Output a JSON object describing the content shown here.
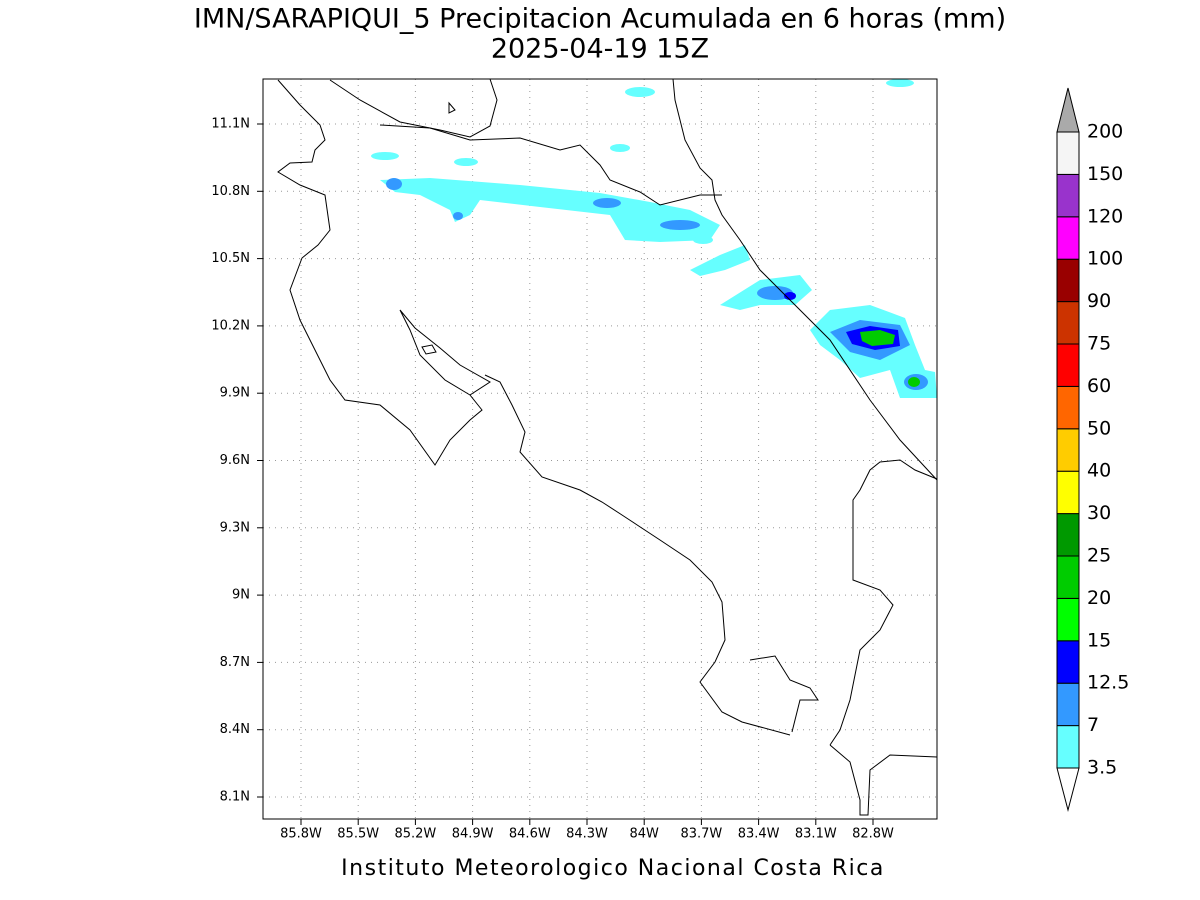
{
  "title": "IMN/SARAPIQUI_5 Precipitacion Acumulada en 6 horas (mm)",
  "subtitle": "2025-04-19 15Z",
  "map": {
    "lon_labels": [
      "85.8W",
      "85.5W",
      "85.2W",
      "84.9W",
      "84.6W",
      "84.3W",
      "84W",
      "83.7W",
      "83.4W",
      "83.1W",
      "82.8W"
    ],
    "lat_labels": [
      "11.1N",
      "10.8N",
      "10.5N",
      "10.2N",
      "9.9N",
      "9.6N",
      "9.3N",
      "9N",
      "8.7N",
      "8.4N",
      "8.1N"
    ]
  },
  "legend": {
    "levels": [
      3.5,
      7,
      12.5,
      15,
      20,
      25,
      30,
      40,
      50,
      60,
      75,
      90,
      100,
      120,
      150,
      200
    ],
    "colors": [
      "#ffffff",
      "#66ffff",
      "#3399ff",
      "#0000ff",
      "#00ff00",
      "#00cc00",
      "#009900",
      "#ffff00",
      "#ffcc00",
      "#ff6600",
      "#ff0000",
      "#cc3300",
      "#990000",
      "#ff00ff",
      "#9933cc",
      "#f5f5f5",
      "#aaaaaa"
    ]
  },
  "footer": "Instituto Meteorologico Nacional Costa Rica"
}
